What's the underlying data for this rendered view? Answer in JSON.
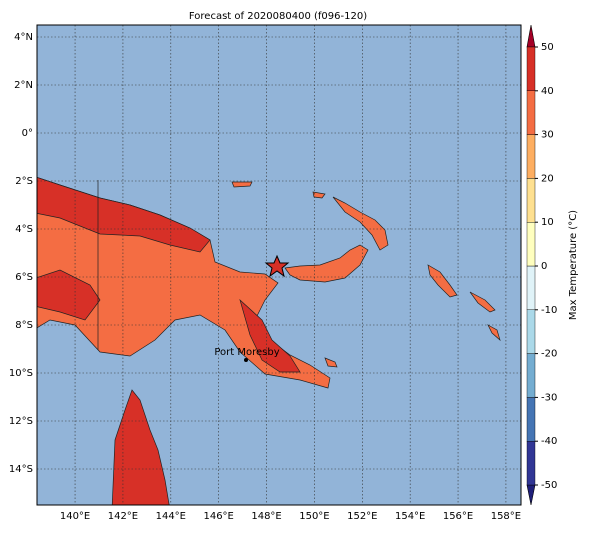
{
  "title": "Forecast of 2020080400 (f096-120)",
  "xlim": [
    138.41,
    158.63
  ],
  "ylim": [
    -15.5,
    4.5
  ],
  "xticks": [
    {
      "value": 140,
      "label": "140°E"
    },
    {
      "value": 142,
      "label": "142°E"
    },
    {
      "value": 144,
      "label": "144°E"
    },
    {
      "value": 146,
      "label": "146°E"
    },
    {
      "value": 148,
      "label": "148°E"
    },
    {
      "value": 150,
      "label": "150°E"
    },
    {
      "value": 152,
      "label": "152°E"
    },
    {
      "value": 154,
      "label": "154°E"
    },
    {
      "value": 156,
      "label": "156°E"
    },
    {
      "value": 158,
      "label": "158°E"
    }
  ],
  "yticks": [
    {
      "value": 4,
      "label": "4°N"
    },
    {
      "value": 2,
      "label": "2°N"
    },
    {
      "value": 0,
      "label": "0°"
    },
    {
      "value": -2,
      "label": "2°S"
    },
    {
      "value": -4,
      "label": "4°S"
    },
    {
      "value": -6,
      "label": "6°S"
    },
    {
      "value": -8,
      "label": "8°S"
    },
    {
      "value": -10,
      "label": "10°S"
    },
    {
      "value": -12,
      "label": "12°S"
    },
    {
      "value": -14,
      "label": "14°S"
    }
  ],
  "grid": true,
  "city": {
    "label": "Port Moresby"
  },
  "colorbar": {
    "label": "Max Temperature (°C)",
    "lim": [
      -50,
      50
    ],
    "ticks": [
      -50,
      -40,
      -30,
      -20,
      -10,
      0,
      10,
      20,
      30,
      40,
      50
    ],
    "colors": [
      "#313695",
      "#4575b4",
      "#74add1",
      "#abd9e9",
      "#e0f3f8",
      "#ffffbf",
      "#fee090",
      "#fdae61",
      "#f46d43",
      "#d73027"
    ],
    "under": "#1f1f7a",
    "over": "#a50026"
  }
}
